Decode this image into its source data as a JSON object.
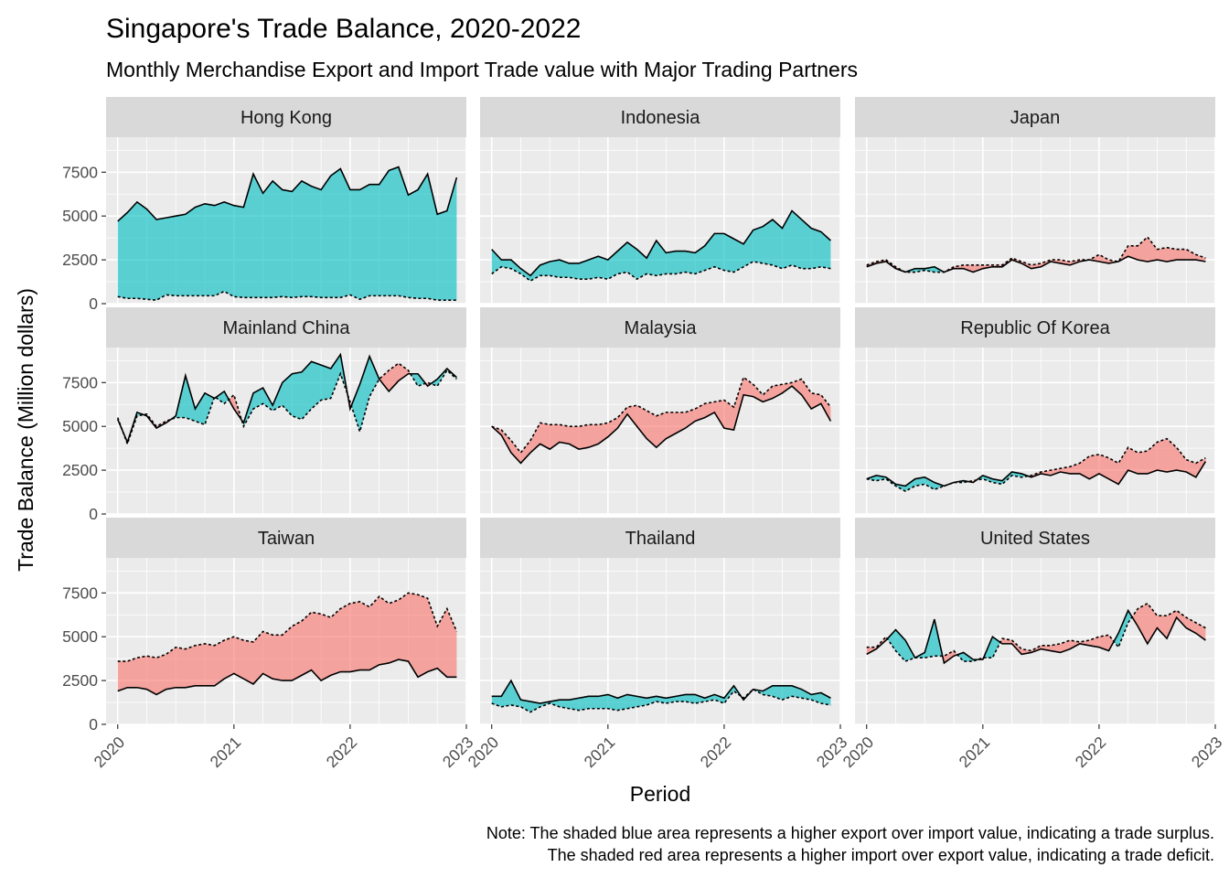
{
  "title": "Singapore's Trade Balance, 2020-2022",
  "subtitle": "Monthly Merchandise Export and Import Trade value with Major Trading Partners",
  "caption_lines": [
    "Note: The shaded blue area represents a higher export over import value, indicating a trade surplus.",
    "The shaded red area represents a higher import over export value, indicating a trade deficit."
  ],
  "colors": {
    "surplus": "#00bfc4",
    "deficit": "#f8766d"
  },
  "chart_data": {
    "type": "area",
    "xlabel": "Period",
    "ylabel": "Trade Balance (Million dollars)",
    "xlim": [
      2019.9,
      2023.0
    ],
    "ylim": [
      0,
      9500
    ],
    "x_ticks": [
      2020,
      2021,
      2022,
      2023
    ],
    "x_tick_labels": [
      "2020",
      "2021",
      "2022",
      "2023"
    ],
    "y_ticks": [
      0,
      2500,
      5000,
      7500
    ],
    "y_tick_labels": [
      "0",
      "2500",
      "5000",
      "7500"
    ],
    "grid": true,
    "x": [
      "2020-01",
      "2020-02",
      "2020-03",
      "2020-04",
      "2020-05",
      "2020-06",
      "2020-07",
      "2020-08",
      "2020-09",
      "2020-10",
      "2020-11",
      "2020-12",
      "2021-01",
      "2021-02",
      "2021-03",
      "2021-04",
      "2021-05",
      "2021-06",
      "2021-07",
      "2021-08",
      "2021-09",
      "2021-10",
      "2021-11",
      "2021-12",
      "2022-01",
      "2022-02",
      "2022-03",
      "2022-04",
      "2022-05",
      "2022-06",
      "2022-07",
      "2022-08",
      "2022-09",
      "2022-10",
      "2022-11",
      "2022-12"
    ],
    "series_keys": [
      "Export",
      "Import"
    ],
    "panels": [
      {
        "name": "Hong Kong",
        "export": [
          4700,
          5200,
          5800,
          5400,
          4800,
          4900,
          5000,
          5100,
          5500,
          5700,
          5600,
          5800,
          5600,
          5500,
          7400,
          6300,
          7000,
          6500,
          6400,
          7000,
          6700,
          6500,
          7300,
          7700,
          6500,
          6500,
          6800,
          6800,
          7600,
          7800,
          6200,
          6500,
          7400,
          5100,
          5300,
          7200
        ],
        "import": [
          400,
          300,
          300,
          250,
          200,
          500,
          450,
          450,
          450,
          450,
          450,
          700,
          400,
          350,
          350,
          350,
          350,
          400,
          350,
          400,
          400,
          350,
          350,
          350,
          500,
          250,
          450,
          450,
          450,
          450,
          350,
          300,
          300,
          200,
          200,
          200
        ]
      },
      {
        "name": "Indonesia",
        "export": [
          3100,
          2500,
          2500,
          2000,
          1600,
          2200,
          2400,
          2500,
          2300,
          2300,
          2500,
          2700,
          2500,
          3000,
          3500,
          3100,
          2600,
          3600,
          2900,
          3000,
          3000,
          2900,
          3300,
          4000,
          4000,
          3700,
          3400,
          4200,
          4400,
          4800,
          4300,
          5300,
          4800,
          4300,
          4100,
          3600
        ],
        "import": [
          1700,
          2100,
          2000,
          1700,
          1300,
          1600,
          1600,
          1500,
          1500,
          1400,
          1400,
          1500,
          1400,
          1700,
          1800,
          1400,
          1700,
          1600,
          1700,
          1700,
          1800,
          1700,
          1900,
          2100,
          1900,
          1800,
          2100,
          2400,
          2300,
          2200,
          2000,
          2200,
          2000,
          2000,
          2100,
          2000
        ]
      },
      {
        "name": "Japan",
        "export": [
          2100,
          2300,
          2400,
          2000,
          1800,
          2000,
          2000,
          2100,
          1800,
          2000,
          2000,
          1800,
          2000,
          2100,
          2100,
          2500,
          2300,
          2000,
          2100,
          2400,
          2300,
          2200,
          2400,
          2500,
          2400,
          2300,
          2400,
          2700,
          2500,
          2400,
          2500,
          2400,
          2500,
          2500,
          2500,
          2400
        ],
        "import": [
          2200,
          2400,
          2500,
          2100,
          1800,
          1800,
          1900,
          1800,
          1800,
          2100,
          2200,
          2200,
          2200,
          2200,
          2200,
          2600,
          2400,
          2200,
          2300,
          2500,
          2500,
          2400,
          2500,
          2500,
          2800,
          2500,
          2400,
          3300,
          3300,
          3800,
          3100,
          3200,
          3100,
          3100,
          2800,
          2600
        ]
      },
      {
        "name": "Mainland China",
        "export": [
          5400,
          4100,
          5800,
          5600,
          4900,
          5200,
          5600,
          7900,
          6000,
          6900,
          6600,
          7000,
          6000,
          5200,
          6900,
          7200,
          6200,
          7500,
          8000,
          8100,
          8700,
          8500,
          8300,
          9100,
          6000,
          7400,
          9000,
          7700,
          7000,
          7600,
          8000,
          8000,
          7300,
          7700,
          8300,
          7800
        ],
        "import": [
          5500,
          4000,
          5600,
          5700,
          5000,
          5300,
          5500,
          5500,
          5300,
          5100,
          6700,
          6300,
          6800,
          5000,
          6000,
          6300,
          5900,
          6200,
          5600,
          5400,
          6000,
          6500,
          6600,
          8000,
          6400,
          4700,
          6700,
          7700,
          8200,
          8600,
          8200,
          7300,
          7500,
          7300,
          8200,
          7700
        ]
      },
      {
        "name": "Malaysia",
        "export": [
          5000,
          4500,
          3500,
          2900,
          3500,
          4000,
          3700,
          4100,
          4000,
          3700,
          3800,
          4000,
          4400,
          4900,
          5700,
          5000,
          4300,
          3800,
          4300,
          4600,
          4900,
          5300,
          5500,
          5800,
          4900,
          4800,
          6800,
          6700,
          6400,
          6600,
          6900,
          7300,
          6800,
          6000,
          6300,
          5300
        ],
        "import": [
          5000,
          4800,
          4200,
          3500,
          4200,
          5200,
          5100,
          5100,
          5000,
          5000,
          5100,
          5100,
          5200,
          5500,
          6100,
          6200,
          5900,
          5600,
          5800,
          5800,
          5800,
          6000,
          6300,
          6400,
          6500,
          6100,
          7800,
          7400,
          6800,
          7300,
          7400,
          7500,
          7700,
          6900,
          6800,
          6100
        ]
      },
      {
        "name": "Republic Of Korea",
        "export": [
          2000,
          2200,
          2100,
          1700,
          1600,
          2000,
          2100,
          1800,
          1600,
          1800,
          1900,
          1800,
          2200,
          2000,
          1900,
          2400,
          2300,
          2100,
          2300,
          2200,
          2400,
          2300,
          2300,
          2000,
          2300,
          2000,
          1700,
          2500,
          2300,
          2300,
          2500,
          2400,
          2500,
          2400,
          2100,
          3000
        ],
        "import": [
          2000,
          1900,
          2000,
          1600,
          1300,
          1600,
          1700,
          1400,
          1600,
          1800,
          1800,
          1900,
          2000,
          1800,
          1700,
          2200,
          2100,
          2200,
          2400,
          2500,
          2600,
          2700,
          2900,
          3300,
          3400,
          3200,
          2900,
          3800,
          3500,
          3600,
          4100,
          4300,
          3800,
          3100,
          2900,
          3200
        ]
      },
      {
        "name": "Taiwan",
        "export": [
          1900,
          2100,
          2100,
          2000,
          1700,
          2000,
          2100,
          2100,
          2200,
          2200,
          2200,
          2600,
          2900,
          2600,
          2300,
          2900,
          2600,
          2500,
          2500,
          2800,
          3100,
          2500,
          2800,
          3000,
          3000,
          3100,
          3100,
          3400,
          3500,
          3700,
          3600,
          2700,
          3000,
          3200,
          2700,
          2700
        ],
        "import": [
          3600,
          3600,
          3800,
          3900,
          3800,
          4000,
          4400,
          4300,
          4500,
          4600,
          4500,
          4800,
          5000,
          4800,
          4700,
          5300,
          5100,
          5100,
          5600,
          5900,
          6400,
          6300,
          6100,
          6600,
          6900,
          7000,
          6700,
          7300,
          6900,
          7100,
          7500,
          7400,
          7200,
          5600,
          6600,
          5300
        ]
      },
      {
        "name": "Thailand",
        "export": [
          1600,
          1600,
          2500,
          1400,
          1300,
          1200,
          1300,
          1400,
          1400,
          1500,
          1600,
          1600,
          1700,
          1500,
          1700,
          1600,
          1500,
          1600,
          1500,
          1600,
          1700,
          1700,
          1500,
          1700,
          1500,
          2200,
          1400,
          2000,
          1900,
          2200,
          2200,
          2200,
          2000,
          1700,
          1800,
          1500
        ],
        "import": [
          1200,
          1000,
          1100,
          1000,
          700,
          1000,
          1200,
          1000,
          900,
          800,
          900,
          900,
          900,
          800,
          900,
          1000,
          1100,
          1300,
          1200,
          1300,
          1300,
          1200,
          1300,
          1400,
          1200,
          1900,
          1500,
          2000,
          1700,
          1600,
          1400,
          1600,
          1500,
          1400,
          1200,
          1100
        ]
      },
      {
        "name": "United States",
        "export": [
          4000,
          4300,
          4800,
          5400,
          4800,
          3800,
          4100,
          6000,
          3500,
          3900,
          4100,
          3700,
          3700,
          5000,
          4600,
          4600,
          4000,
          4100,
          4300,
          4200,
          4100,
          4300,
          4600,
          4500,
          4400,
          4200,
          5200,
          6500,
          5600,
          4600,
          5500,
          4900,
          6100,
          5500,
          5200,
          4800
        ],
        "import": [
          4400,
          4400,
          5000,
          4200,
          3600,
          3800,
          3800,
          3900,
          3900,
          4200,
          3600,
          3600,
          3800,
          3800,
          4900,
          4800,
          4300,
          4200,
          4500,
          4500,
          4600,
          4800,
          4700,
          4800,
          5000,
          5100,
          4400,
          5800,
          6600,
          6900,
          6200,
          6200,
          6500,
          6100,
          5800,
          5500
        ]
      }
    ]
  }
}
